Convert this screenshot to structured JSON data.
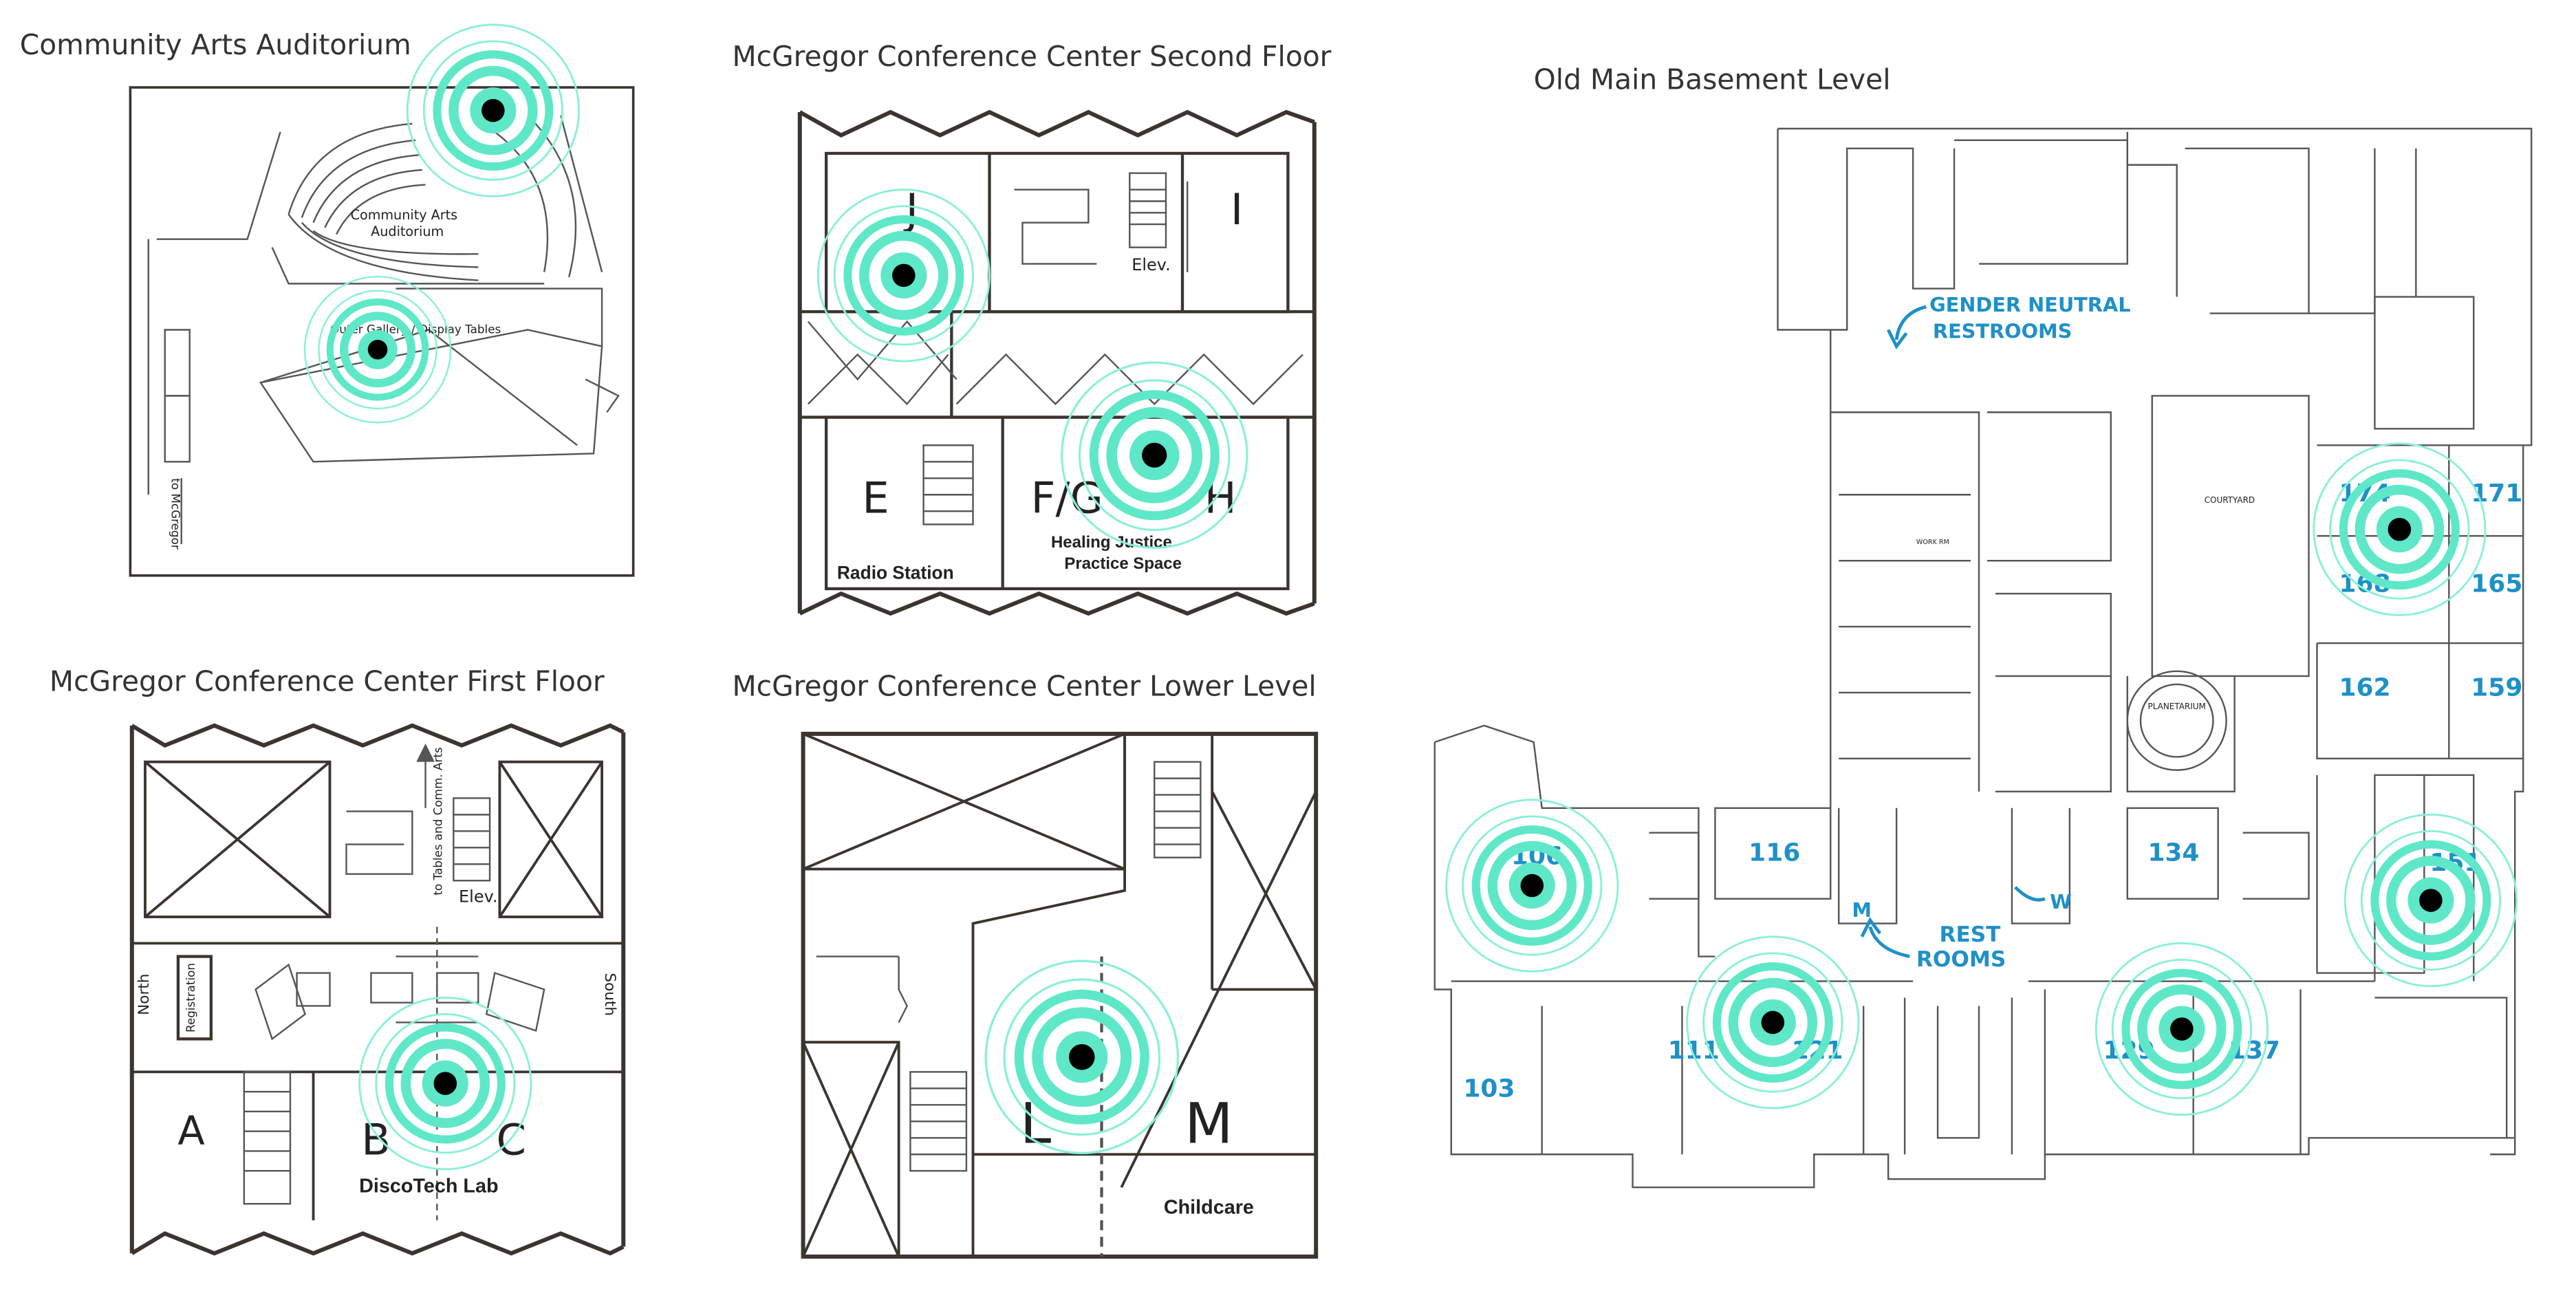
{
  "maps": {
    "auditorium": {
      "title": "Community Arts Auditorium",
      "center_label_1": "Community Arts",
      "center_label_2": "Auditorium",
      "gallery_label": "Outer Gallery / Display Tables",
      "side_label": "to McGregor"
    },
    "second_floor": {
      "title": "McGregor Conference Center Second Floor",
      "rooms": [
        "J",
        "I",
        "E",
        "F/G",
        "H"
      ],
      "elev": "Elev.",
      "radio": "Radio Station",
      "healing_1": "Healing Justice",
      "healing_2": "Practice Space"
    },
    "first_floor": {
      "title": "McGregor Conference Center First Floor",
      "rooms": [
        "A",
        "B",
        "C"
      ],
      "elev": "Elev.",
      "north": "North",
      "south": "South",
      "registration": "Registration",
      "to_tables": "to Tables and Comm. Arts",
      "lab": "DiscoTech Lab"
    },
    "lower_level": {
      "title": "McGregor Conference Center Lower Level",
      "rooms": [
        "L",
        "M"
      ],
      "childcare": "Childcare"
    },
    "old_main": {
      "title": "Old Main Basement Level",
      "gender_neutral_1": "GENDER NEUTRAL",
      "gender_neutral_2": "RESTROOMS",
      "rest_1": "REST",
      "rest_2": "ROOMS",
      "m": "M",
      "w": "W",
      "courtyard": "COURTYARD",
      "planetarium": "PLANETARIUM",
      "work_rm": "WORK RM",
      "room_numbers": [
        "174",
        "171",
        "168",
        "165",
        "162",
        "159",
        "106",
        "116",
        "134",
        "151",
        "103",
        "111",
        "121",
        "129",
        "137"
      ]
    }
  },
  "colors": {
    "marker_ring": "#5ee8c8",
    "marker_dot": "#000000",
    "blue_label": "#1e90c8",
    "wall": "#3a3530"
  },
  "icons": [
    "location-marker-icon",
    "arrow-icon"
  ]
}
